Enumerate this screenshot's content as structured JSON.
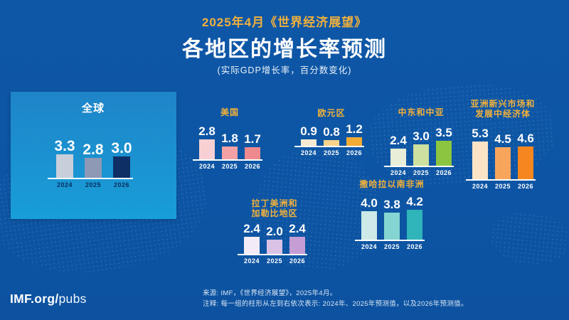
{
  "header": {
    "kicker": "2025年4月《世界经济展望》",
    "title": "各地区的增长率预测",
    "subtitle": "(实际GDP增长率，百分数变化)"
  },
  "footer": {
    "brand_bold": "IMF.org/",
    "brand_light": "pubs",
    "source": "来源: IMF，《世界经济展望》，2025年4月。",
    "note": "注释: 每一组的柱形从左到右依次表示: 2024年、2025年预测值，以及2026年预测值。"
  },
  "colors": {
    "background": "#0d56a5",
    "panel_top": "#1e84c8",
    "panel_bottom": "#189ed8",
    "accent_gold": "#f1b13c",
    "baseline_white": "#ffffff"
  },
  "chart_data": {
    "type": "bar",
    "title": "各地区的增长率预测",
    "ylabel": "实际GDP增长率（百分数变化）",
    "categories": [
      "2024",
      "2025",
      "2026"
    ],
    "legend_position": "none",
    "grid": false,
    "ylim": [
      0,
      6
    ],
    "groups": [
      {
        "id": "global",
        "region_lines": [
          "全球"
        ],
        "values": [
          3.3,
          2.8,
          3.0
        ],
        "labels": [
          "3.3",
          "2.8",
          "3.0"
        ],
        "bar_colors": [
          "#c9cedb",
          "#8d99b5",
          "#0e2f66"
        ],
        "title_color": "#ffffff",
        "year_label_color": "#0b2d5e",
        "highlight_panel": true
      },
      {
        "id": "usa",
        "region_lines": [
          "美国"
        ],
        "values": [
          2.8,
          1.8,
          1.7
        ],
        "labels": [
          "2.8",
          "1.8",
          "1.7"
        ],
        "bar_colors": [
          "#f8d0d3",
          "#f2a0a3",
          "#ee8a8e"
        ],
        "title_color": "#f1b13c",
        "year_label_color": "#ffffff"
      },
      {
        "id": "euro",
        "region_lines": [
          "欧元区"
        ],
        "values": [
          0.9,
          0.8,
          1.2
        ],
        "labels": [
          "0.9",
          "0.8",
          "1.2"
        ],
        "bar_colors": [
          "#f7ead0",
          "#f6d38b",
          "#f2ab33"
        ],
        "title_color": "#f1b13c",
        "year_label_color": "#ffffff"
      },
      {
        "id": "mena",
        "region_lines": [
          "中东和中亚"
        ],
        "values": [
          2.4,
          3.0,
          3.5
        ],
        "labels": [
          "2.4",
          "3.0",
          "3.5"
        ],
        "bar_colors": [
          "#e8eed8",
          "#cde09f",
          "#8cc540"
        ],
        "title_color": "#f1b13c",
        "year_label_color": "#ffffff"
      },
      {
        "id": "asia",
        "region_lines": [
          "亚洲新兴市场和",
          "发展中经济体"
        ],
        "values": [
          5.3,
          4.5,
          4.6
        ],
        "labels": [
          "5.3",
          "4.5",
          "4.6"
        ],
        "bar_colors": [
          "#fbe4c5",
          "#f8a55c",
          "#f6861f"
        ],
        "title_color": "#f1b13c",
        "year_label_color": "#ffffff"
      },
      {
        "id": "latam",
        "region_lines": [
          "拉丁美洲和",
          "加勒比地区"
        ],
        "values": [
          2.4,
          2.0,
          2.4
        ],
        "labels": [
          "2.4",
          "2.0",
          "2.4"
        ],
        "bar_colors": [
          "#f3ecf6",
          "#d9c2e5",
          "#c69dd4"
        ],
        "title_color": "#f1b13c",
        "year_label_color": "#ffffff"
      },
      {
        "id": "ssa",
        "region_lines": [
          "撒哈拉以南非洲"
        ],
        "values": [
          4.0,
          3.8,
          4.2
        ],
        "labels": [
          "4.0",
          "3.8",
          "4.2"
        ],
        "bar_colors": [
          "#cdeae8",
          "#85d5d2",
          "#2fb4b9"
        ],
        "title_color": "#f1b13c",
        "year_label_color": "#ffffff"
      }
    ]
  }
}
